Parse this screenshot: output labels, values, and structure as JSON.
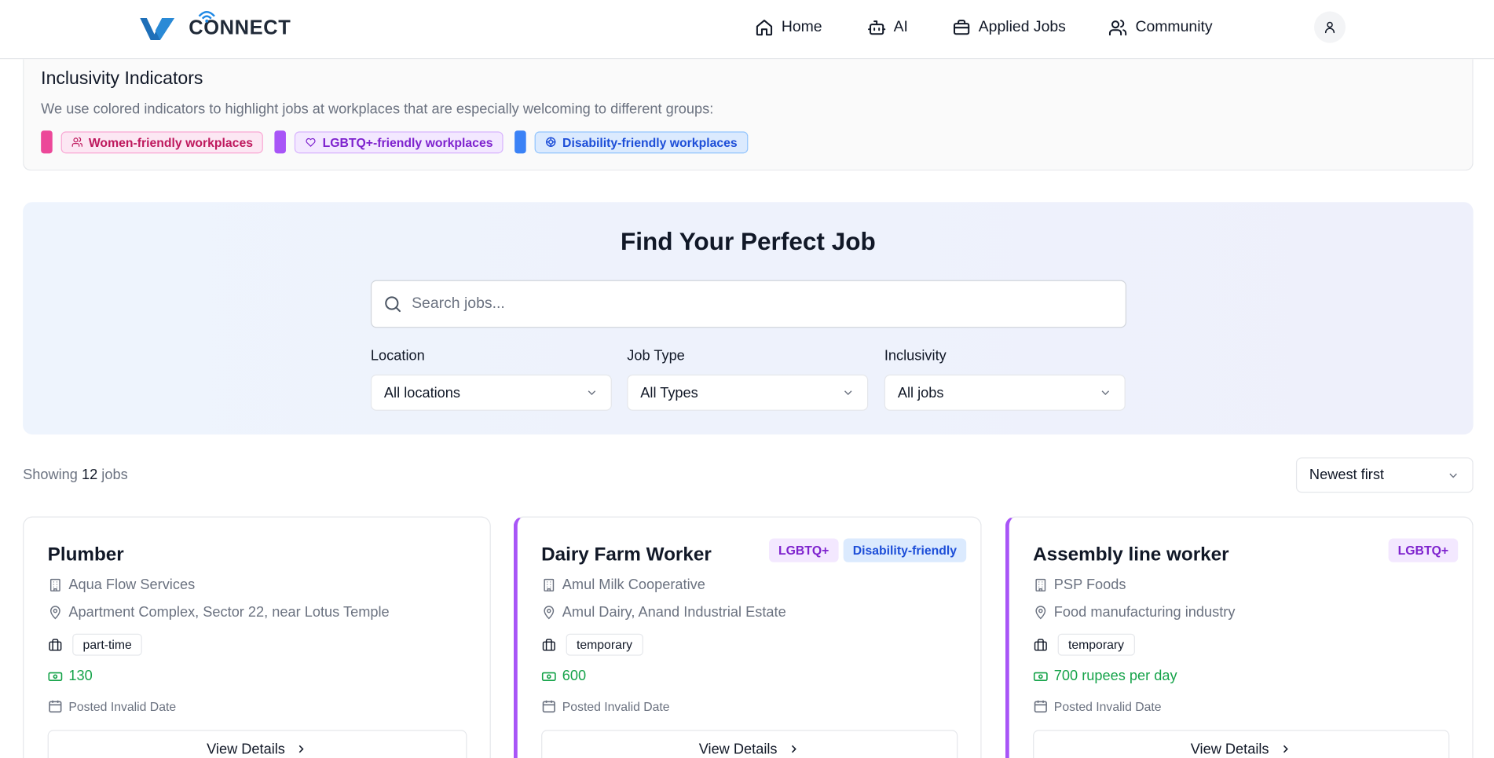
{
  "header": {
    "logo_text": "CONNECT",
    "nav": [
      {
        "label": "Home",
        "icon": "home-icon"
      },
      {
        "label": "AI",
        "icon": "bot-icon"
      },
      {
        "label": "Applied Jobs",
        "icon": "briefcase-icon"
      },
      {
        "label": "Community",
        "icon": "users-icon"
      }
    ],
    "avatar_icon": "user-icon"
  },
  "inclusivity": {
    "title": "Inclusivity Indicators",
    "description": "We use colored indicators to highlight jobs at workplaces that are especially welcoming to different groups:",
    "items": [
      {
        "label": "Women-friendly workplaces",
        "icon": "users-icon",
        "color": "#ec4899"
      },
      {
        "label": "LGBTQ+-friendly workplaces",
        "icon": "heart-icon",
        "color": "#a855f7"
      },
      {
        "label": "Disability-friendly workplaces",
        "icon": "accessibility-icon",
        "color": "#3b82f6"
      }
    ]
  },
  "search": {
    "heading": "Find Your Perfect Job",
    "placeholder": "Search jobs...",
    "filters": [
      {
        "label": "Location",
        "value": "All locations"
      },
      {
        "label": "Job Type",
        "value": "All Types"
      },
      {
        "label": "Inclusivity",
        "value": "All jobs"
      }
    ]
  },
  "results": {
    "showing_prefix": "Showing",
    "count": "12",
    "showing_suffix": "jobs",
    "sort_value": "Newest first"
  },
  "jobs": [
    {
      "title": "Plumber",
      "company": "Aqua Flow Services",
      "location": "Apartment Complex, Sector 22, near Lotus Temple",
      "type": "part-time",
      "pay": "130",
      "posted": "Posted Invalid Date",
      "badges": [],
      "view_label": "View Details"
    },
    {
      "title": "Dairy Farm Worker",
      "company": "Amul Milk Cooperative",
      "location": "Amul Dairy, Anand Industrial Estate",
      "type": "temporary",
      "pay": "600",
      "posted": "Posted Invalid Date",
      "badges": [
        "LGBTQ+",
        "Disability-friendly"
      ],
      "view_label": "View Details"
    },
    {
      "title": "Assembly line worker",
      "company": "PSP Foods",
      "location": "Food manufacturing industry",
      "type": "temporary",
      "pay": "700 rupees per day",
      "posted": "Posted Invalid Date",
      "badges": [
        "LGBTQ+"
      ],
      "view_label": "View Details"
    }
  ],
  "colors": {
    "accent_purple": "#a855f7",
    "pay_green": "#16a34a",
    "logo_blue": "#1e6fb8"
  }
}
